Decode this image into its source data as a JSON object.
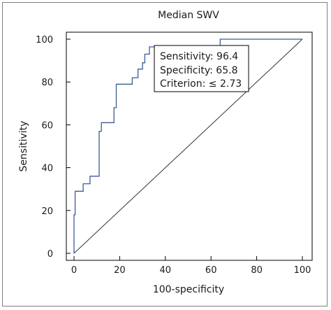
{
  "chart_data": {
    "type": "line",
    "title": "Median SWV",
    "xlabel": "100-specificity",
    "ylabel": "Sensitivity",
    "xlim": [
      0,
      100
    ],
    "ylim": [
      0,
      100
    ],
    "xticks": [
      0,
      20,
      40,
      60,
      80,
      100
    ],
    "yticks": [
      0,
      20,
      40,
      60,
      80,
      100
    ],
    "grid": false,
    "colors": {
      "roc": "#3d5a99",
      "reference": "#333333",
      "axis": "#000000"
    },
    "series": [
      {
        "points": [
          [
            0,
            0
          ],
          [
            0,
            18
          ],
          [
            0.5,
            18
          ],
          [
            0.5,
            29
          ],
          [
            4,
            29
          ],
          [
            4,
            32.5
          ],
          [
            7,
            32.5
          ],
          [
            7,
            36
          ],
          [
            11,
            36
          ],
          [
            11,
            57
          ],
          [
            12,
            57
          ],
          [
            12,
            61
          ],
          [
            17.5,
            61
          ],
          [
            17.5,
            68
          ],
          [
            18.5,
            68
          ],
          [
            18.5,
            79
          ],
          [
            25.5,
            79
          ],
          [
            25.5,
            82
          ],
          [
            28,
            82
          ],
          [
            28,
            86
          ],
          [
            30,
            86
          ],
          [
            30,
            89
          ],
          [
            31,
            89
          ],
          [
            31,
            93
          ],
          [
            33,
            93
          ],
          [
            33,
            96.4
          ],
          [
            64,
            96.4
          ],
          [
            64,
            100
          ],
          [
            100,
            100
          ]
        ]
      },
      {
        "points": [
          [
            0,
            0
          ],
          [
            100,
            100
          ]
        ]
      }
    ],
    "annotation": {
      "lines": [
        "Sensitivity: 96.4",
        "Specificity: 65.8",
        "Criterion: ≤ 2.73"
      ]
    }
  }
}
